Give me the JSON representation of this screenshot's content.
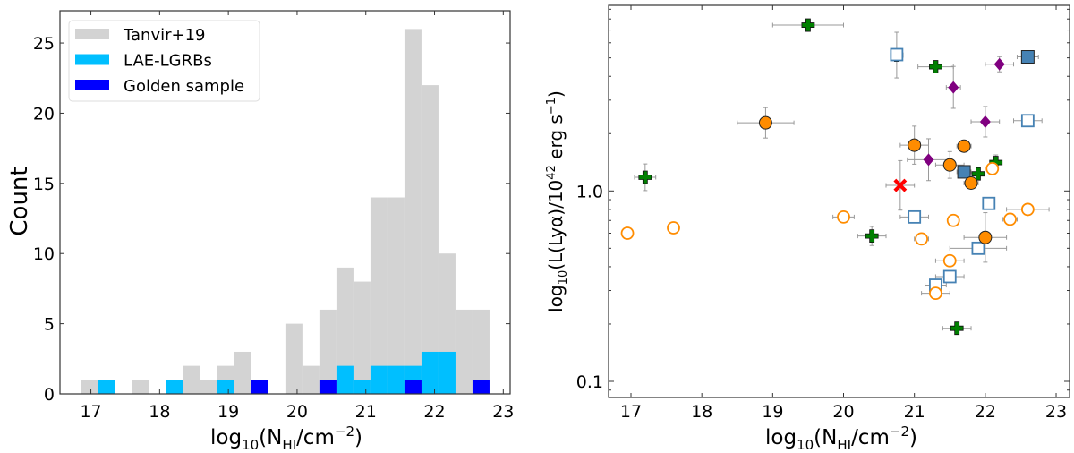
{
  "chart_data": [
    {
      "type": "bar",
      "subtype": "histogram",
      "xlabel_parts": [
        "log",
        "10",
        "(N",
        "HI",
        "/cm",
        "−2",
        ")"
      ],
      "ylabel": "Count",
      "xlim": [
        16.55,
        23.1
      ],
      "ylim": [
        0,
        27.3
      ],
      "xticks": [
        17,
        18,
        19,
        20,
        21,
        22,
        23
      ],
      "yticks": [
        0,
        5,
        10,
        15,
        20,
        25
      ],
      "bin_start": 16.86,
      "bin_width": 0.2475,
      "legend_position": "top-left",
      "series": [
        {
          "name": "Tanvir+19",
          "color": "#d3d3d3",
          "values": [
            1,
            0,
            0,
            1,
            0,
            0,
            2,
            1,
            2,
            3,
            0,
            0,
            5,
            2,
            6,
            9,
            8,
            14,
            14,
            26,
            22,
            10,
            6,
            6
          ]
        },
        {
          "name": "LAE-LGRBs",
          "color": "#00bfff",
          "values": [
            0,
            1,
            0,
            0,
            0,
            1,
            0,
            0,
            1,
            0,
            0,
            0,
            0,
            0,
            0,
            2,
            1,
            2,
            2,
            2,
            3,
            3,
            0,
            0
          ]
        },
        {
          "name": "Golden sample",
          "color": "#0000ff",
          "values": [
            0,
            0,
            0,
            0,
            0,
            0,
            0,
            0,
            0,
            0,
            1,
            0,
            0,
            0,
            1,
            0,
            0,
            0,
            0,
            1,
            0,
            0,
            0,
            1
          ]
        }
      ]
    },
    {
      "type": "scatter",
      "xlabel_parts": [
        "log",
        "10",
        "(N",
        "HI",
        "/cm",
        "−2",
        ")"
      ],
      "ylabel_parts": [
        "log",
        "10",
        "(L(Lyα)/10",
        "42",
        " erg s",
        "−1",
        ")"
      ],
      "xlim": [
        16.68,
        23.19
      ],
      "ylim": [
        0.082,
        9.47
      ],
      "yscale": "log",
      "xticks": [
        17,
        18,
        19,
        20,
        21,
        22,
        23
      ],
      "yticks": [
        0.1,
        1.0
      ],
      "ytick_labels": [
        "0.1",
        "1.0"
      ],
      "series": [
        {
          "marker": "plus",
          "color": "#008000",
          "points": [
            [
              19.5,
              7.43,
              0.5,
              0.02
            ],
            [
              20.75,
              5.17,
              0.08,
              0.12
            ],
            [
              21.3,
              4.49,
              0.25,
              0.03
            ],
            [
              17.2,
              1.18,
              0.15,
              0.07
            ],
            [
              22.15,
              1.41,
              0.05,
              0.04
            ],
            [
              21.9,
              1.23,
              0.05,
              0.02
            ],
            [
              20.4,
              0.58,
              0.2,
              0.05
            ],
            [
              21.6,
              0.19,
              0.2,
              0.01
            ]
          ]
        },
        {
          "marker": "diamond",
          "color": "#800080",
          "points": [
            [
              22.2,
              4.63,
              0.2,
              0.04
            ],
            [
              21.55,
              3.5,
              0.1,
              0.11
            ],
            [
              22.0,
              2.31,
              0.2,
              0.08
            ],
            [
              21.2,
              1.46,
              0.3,
              0.11
            ]
          ]
        },
        {
          "marker": "square-filled",
          "color": "#4682b4",
          "points": [
            [
              22.6,
              5.06,
              0.15,
              0.01
            ],
            [
              21.7,
              1.26,
              0.1,
              0.02
            ]
          ]
        },
        {
          "marker": "square-open",
          "color": "#4682b4",
          "points": [
            [
              20.75,
              5.2,
              0.05,
              0.0
            ],
            [
              22.6,
              2.34,
              0.2,
              0.0
            ],
            [
              22.05,
              0.86,
              0.05,
              0.0
            ],
            [
              21.0,
              0.73,
              0.2,
              0.0
            ],
            [
              21.9,
              0.5,
              0.4,
              0.0
            ],
            [
              21.5,
              0.355,
              0.2,
              0.0
            ],
            [
              21.3,
              0.32,
              0.15,
              0.0
            ]
          ]
        },
        {
          "marker": "circle-filled",
          "color": "#ff8c00",
          "points": [
            [
              18.9,
              2.28,
              0.4,
              0.08
            ],
            [
              21.0,
              1.74,
              0.2,
              0.1
            ],
            [
              21.7,
              1.72,
              0.1,
              0.03
            ],
            [
              21.5,
              1.37,
              0.2,
              0.07
            ],
            [
              21.8,
              1.1,
              0.1,
              0.03
            ],
            [
              22.0,
              0.57,
              0.3,
              0.13
            ]
          ]
        },
        {
          "marker": "circle-open",
          "color": "#ff8c00",
          "points": [
            [
              16.95,
              0.6,
              0,
              0
            ],
            [
              17.6,
              0.64,
              0.05,
              0
            ],
            [
              20.0,
              0.73,
              0.15,
              0
            ],
            [
              21.1,
              0.56,
              0.1,
              0
            ],
            [
              21.55,
              0.7,
              0.05,
              0
            ],
            [
              22.35,
              0.71,
              0.1,
              0
            ],
            [
              22.6,
              0.8,
              0.3,
              0
            ],
            [
              22.1,
              1.31,
              0.05,
              0
            ],
            [
              21.5,
              0.43,
              0.2,
              0
            ],
            [
              21.3,
              0.29,
              0.2,
              0
            ]
          ]
        },
        {
          "marker": "x",
          "color": "#ff0000",
          "points": [
            [
              20.8,
              1.07,
              0.2,
              0.13
            ]
          ]
        }
      ]
    }
  ]
}
